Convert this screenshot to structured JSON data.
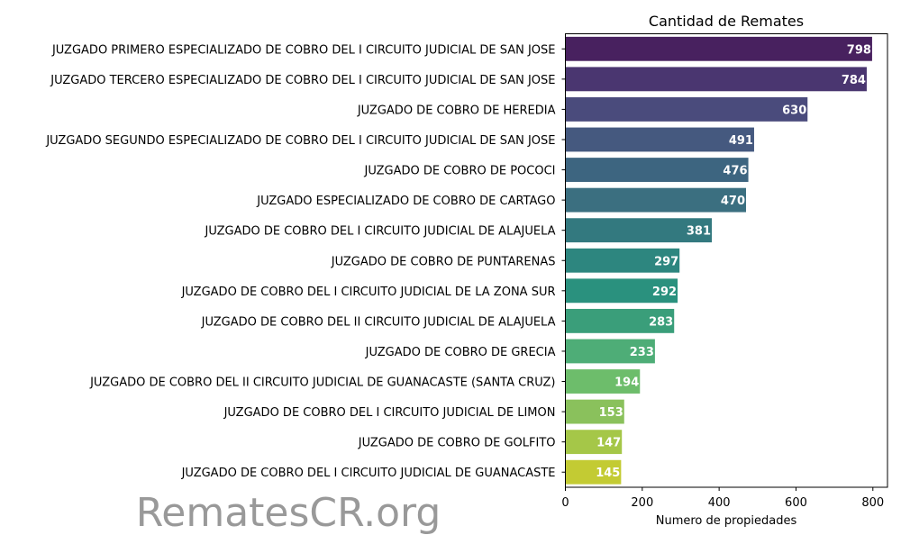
{
  "chart_data": {
    "type": "bar",
    "orientation": "horizontal",
    "title": "Cantidad de Remates",
    "xlabel": "Numero de propiedades",
    "ylabel": "",
    "xlim": [
      0,
      838
    ],
    "xticks": [
      0,
      200,
      400,
      600,
      800
    ],
    "grid": false,
    "watermark": "RematesCR.org",
    "categories": [
      "JUZGADO PRIMERO ESPECIALIZADO DE COBRO DEL I CIRCUITO JUDICIAL DE SAN JOSE",
      "JUZGADO TERCERO ESPECIALIZADO DE COBRO DEL I CIRCUITO JUDICIAL DE SAN JOSE",
      "JUZGADO DE COBRO DE HEREDIA",
      "JUZGADO SEGUNDO ESPECIALIZADO DE COBRO DEL I CIRCUITO JUDICIAL DE SAN JOSE",
      "JUZGADO DE COBRO DE POCOCI",
      "JUZGADO ESPECIALIZADO DE COBRO DE CARTAGO",
      "JUZGADO DE COBRO DEL I CIRCUITO JUDICIAL DE ALAJUELA",
      "JUZGADO DE COBRO DE PUNTARENAS",
      "JUZGADO DE COBRO DEL I CIRCUITO JUDICIAL DE LA ZONA SUR",
      "JUZGADO DE COBRO DEL II CIRCUITO JUDICIAL DE ALAJUELA",
      "JUZGADO DE COBRO DE GRECIA",
      "JUZGADO DE COBRO DEL II CIRCUITO JUDICIAL DE GUANACASTE (SANTA CRUZ)",
      "JUZGADO DE COBRO DEL I CIRCUITO JUDICIAL DE LIMON",
      "JUZGADO DE COBRO DE GOLFITO",
      "JUZGADO DE COBRO DEL I CIRCUITO JUDICIAL DE GUANACASTE"
    ],
    "values": [
      798,
      784,
      630,
      491,
      476,
      470,
      381,
      297,
      292,
      283,
      233,
      194,
      153,
      147,
      145
    ],
    "colors": [
      "#48215f",
      "#4a3670",
      "#4a4b7c",
      "#45597f",
      "#3d6580",
      "#3b6f80",
      "#33797f",
      "#2d867f",
      "#2a917e",
      "#3a9e7a",
      "#4ead77",
      "#6dbd6b",
      "#8ac15c",
      "#a5c748",
      "#c3cb33"
    ],
    "palette": "viridis"
  }
}
